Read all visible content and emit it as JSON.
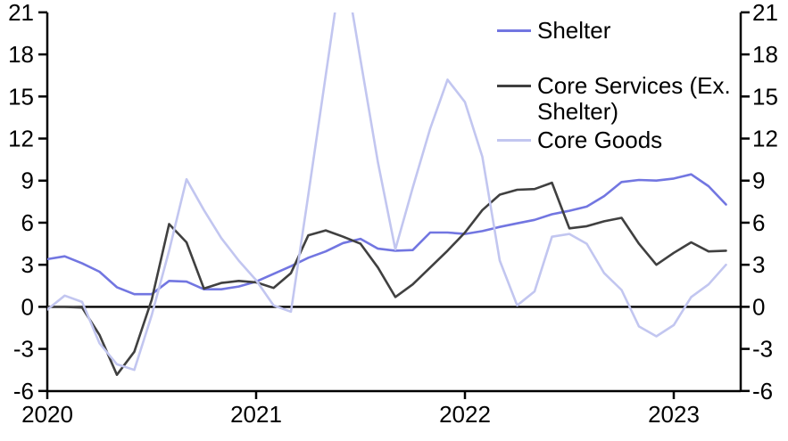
{
  "chart": {
    "background": "#ffffff",
    "axis_color": "#000000",
    "text_color": "#000000"
  },
  "legend": {
    "position": "top-right",
    "items": [
      {
        "label": "Shelter"
      },
      {
        "label": "Core Services (Ex. Shelter)"
      },
      {
        "label": "Core Goods"
      }
    ]
  },
  "chart_data": {
    "type": "line",
    "title": "",
    "xlabel": "",
    "ylabel": "",
    "grid": false,
    "zero_line": true,
    "dual_y_axis": true,
    "ylim": [
      -6,
      21
    ],
    "y_ticks": [
      21,
      18,
      15,
      12,
      9,
      6,
      3,
      0,
      -3,
      -6
    ],
    "x_tick_labels": [
      "2020",
      "2021",
      "2022",
      "2023"
    ],
    "x": [
      "2020-01",
      "2020-02",
      "2020-03",
      "2020-04",
      "2020-05",
      "2020-06",
      "2020-07",
      "2020-08",
      "2020-09",
      "2020-10",
      "2020-11",
      "2020-12",
      "2021-01",
      "2021-02",
      "2021-03",
      "2021-04",
      "2021-05",
      "2021-06",
      "2021-07",
      "2021-08",
      "2021-09",
      "2021-10",
      "2021-11",
      "2021-12",
      "2022-01",
      "2022-02",
      "2022-03",
      "2022-04",
      "2022-05",
      "2022-06",
      "2022-07",
      "2022-08",
      "2022-09",
      "2022-10",
      "2022-11",
      "2022-12",
      "2023-01",
      "2023-02",
      "2023-03",
      "2023-04"
    ],
    "series": [
      {
        "name": "Shelter",
        "color": "#7276e1",
        "values": [
          3.4,
          3.6,
          3.1,
          2.5,
          1.4,
          0.9,
          0.9,
          1.85,
          1.8,
          1.25,
          1.25,
          1.45,
          1.8,
          2.35,
          2.9,
          3.5,
          3.95,
          4.55,
          4.85,
          4.15,
          4.0,
          4.05,
          5.3,
          5.3,
          5.2,
          5.4,
          5.7,
          5.95,
          6.2,
          6.6,
          6.85,
          7.15,
          7.9,
          8.9,
          9.05,
          9.0,
          9.15,
          9.45,
          8.6,
          7.3
        ]
      },
      {
        "name": "Core Services (Ex. Shelter)",
        "color": "#404040",
        "values": [
          0.0,
          0.0,
          -0.05,
          -2.0,
          -4.85,
          -3.2,
          0.5,
          5.9,
          4.6,
          1.3,
          1.7,
          1.85,
          1.75,
          1.35,
          2.4,
          5.1,
          5.45,
          5.0,
          4.5,
          2.8,
          0.7,
          1.6,
          2.8,
          4.0,
          5.3,
          6.9,
          8.0,
          8.35,
          8.4,
          8.85,
          5.6,
          5.75,
          6.1,
          6.35,
          4.5,
          3.0,
          3.85,
          4.6,
          3.95,
          4.0
        ]
      },
      {
        "name": "Core Goods",
        "color": "#c2c6f0",
        "clipped_above": 21,
        "values": [
          -0.2,
          0.8,
          0.35,
          -2.6,
          -4.1,
          -4.5,
          -0.6,
          4.0,
          9.1,
          6.9,
          4.9,
          3.3,
          1.9,
          0.1,
          -0.35,
          8.0,
          16.5,
          25.0,
          17.6,
          10.3,
          4.1,
          8.5,
          12.7,
          16.2,
          14.6,
          10.7,
          3.3,
          0.1,
          1.1,
          5.0,
          5.2,
          4.5,
          2.4,
          1.2,
          -1.4,
          -2.1,
          -1.3,
          0.7,
          1.6,
          3.0
        ]
      }
    ]
  }
}
